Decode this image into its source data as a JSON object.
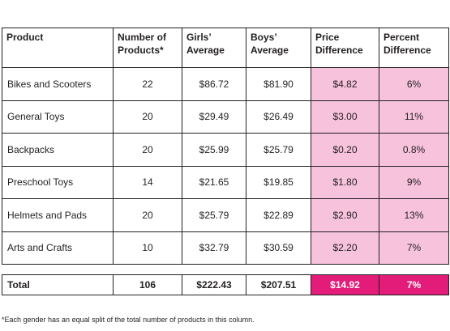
{
  "chart_data": {
    "type": "table",
    "columns": [
      "Product",
      "Number of Products*",
      "Girls’ Average",
      "Boys’ Average",
      "Price Difference",
      "Percent Difference"
    ],
    "rows": [
      [
        "Bikes and Scooters",
        "22",
        "$86.72",
        "$81.90",
        "$4.82",
        "6%"
      ],
      [
        "General Toys",
        "20",
        "$29.49",
        "$26.49",
        "$3.00",
        "11%"
      ],
      [
        "Backpacks",
        "20",
        "$25.99",
        "$25.79",
        "$0.20",
        "0.8%"
      ],
      [
        "Preschool Toys",
        "14",
        "$21.65",
        "$19.85",
        "$1.80",
        "9%"
      ],
      [
        "Helmets and Pads",
        "20",
        "$25.79",
        "$22.89",
        "$2.90",
        "13%"
      ],
      [
        "Arts and Crafts",
        "10",
        "$32.79",
        "$30.59",
        "$2.20",
        "7%"
      ]
    ],
    "total": [
      "Total",
      "106",
      "$222.43",
      "$207.51",
      "$14.92",
      "7%"
    ],
    "footnote": "*Each gender has an equal split of the total number of products in this column.",
    "colors": {
      "highlight_pink": "#f7c2dc",
      "total_magenta": "#e31c79",
      "border": "#231f20"
    }
  }
}
